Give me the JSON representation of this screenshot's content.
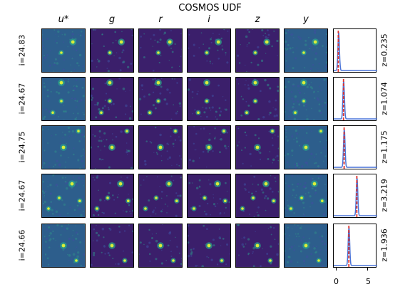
{
  "figure": {
    "title": "COSMOS UDF",
    "bands": [
      "u*",
      "g",
      "r",
      "i",
      "z",
      "y"
    ],
    "rows": [
      {
        "i_label": "i=24.83",
        "z_label": "z=0.235",
        "z_true": 0.235,
        "z_peak": 0.3
      },
      {
        "i_label": "i=24.67",
        "z_label": "z=1.074",
        "z_true": 1.074,
        "z_peak": 1.1
      },
      {
        "i_label": "i=24.75",
        "z_label": "z=1.175",
        "z_true": 1.175,
        "z_peak": 1.2
      },
      {
        "i_label": "i=24.67",
        "z_label": "z=3.219",
        "z_true": 3.219,
        "z_peak": 3.25
      },
      {
        "i_label": "i=24.66",
        "z_label": "z=1.936",
        "z_true": 1.936,
        "z_peak": 1.95
      }
    ],
    "pdf_xaxis": {
      "range": [
        -0.5,
        6.5
      ],
      "ticks": [
        "0",
        "5"
      ]
    },
    "colors": {
      "background": "#3b1f6b",
      "source": "#d9ee3a",
      "pdf_line": "#4a74d8",
      "truth_line": "#e0322b"
    }
  }
}
